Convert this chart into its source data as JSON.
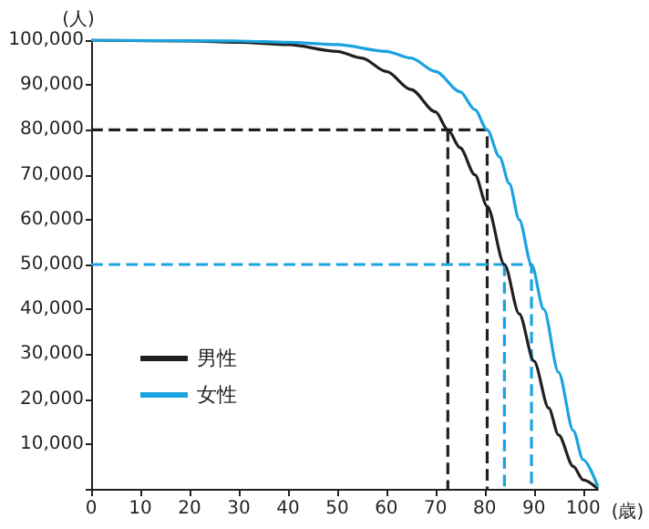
{
  "chart_data": {
    "type": "line",
    "xlabel": "(歳)",
    "ylabel": "(人)",
    "xlim": [
      0,
      103
    ],
    "xticks": [
      0,
      10,
      20,
      30,
      40,
      50,
      60,
      70,
      80,
      90,
      100
    ],
    "ylim": [
      0,
      100000
    ],
    "yticks": [
      {
        "value": 0,
        "label": null
      },
      {
        "value": 10000,
        "label": "10,000"
      },
      {
        "value": 20000,
        "label": "20,000"
      },
      {
        "value": 30000,
        "label": "30,000"
      },
      {
        "value": 40000,
        "label": "40,000"
      },
      {
        "value": 50000,
        "label": "50,000"
      },
      {
        "value": 60000,
        "label": "60,000"
      },
      {
        "value": 70000,
        "label": "70,000"
      },
      {
        "value": 80000,
        "label": "80,000"
      },
      {
        "value": 90000,
        "label": "90,000"
      },
      {
        "value": 100000,
        "label": "100,000"
      }
    ],
    "grid": false,
    "legend": "bottom left",
    "marker": "none",
    "series": [
      {
        "name": "男性",
        "color": "#231f20",
        "line_style": "solid",
        "x": [
          0,
          20,
          30,
          40,
          50,
          55,
          60,
          65,
          70,
          72.5,
          75,
          78,
          80.5,
          84,
          87,
          90,
          93,
          95,
          98,
          100,
          103
        ],
        "values": [
          100000,
          99800,
          99500,
          99000,
          97500,
          96000,
          93000,
          89000,
          84000,
          80000,
          76000,
          70000,
          63000,
          50000,
          39000,
          28500,
          18000,
          12000,
          5000,
          2000,
          0
        ]
      },
      {
        "name": "女性",
        "color": "#1aa3e0",
        "line_style": "solid",
        "x": [
          0,
          30,
          40,
          50,
          60,
          65,
          70,
          75,
          78,
          80.5,
          83,
          85,
          87,
          89.5,
          92,
          95,
          98,
          100,
          103
        ],
        "values": [
          100000,
          99800,
          99500,
          99000,
          97500,
          96000,
          93000,
          88500,
          84500,
          80000,
          74000,
          68000,
          60000,
          50000,
          40000,
          26000,
          13000,
          6500,
          500
        ]
      },
      {
        "color": "#231f20",
        "line_style": "dashed",
        "x": [
          0,
          80.5,
          80.5
        ],
        "values": [
          80000,
          80000,
          0
        ]
      },
      {
        "color": "#231f20",
        "line_style": "dashed",
        "x": [
          72.5,
          72.5
        ],
        "values": [
          80000,
          0
        ]
      },
      {
        "color": "#1aa3e0",
        "line_style": "dashed",
        "x": [
          0,
          89.5,
          89.5
        ],
        "values": [
          50000,
          50000,
          0
        ]
      },
      {
        "color": "#1aa3e0",
        "line_style": "dashed",
        "x": [
          84,
          84
        ],
        "values": [
          50000,
          0
        ]
      }
    ]
  }
}
